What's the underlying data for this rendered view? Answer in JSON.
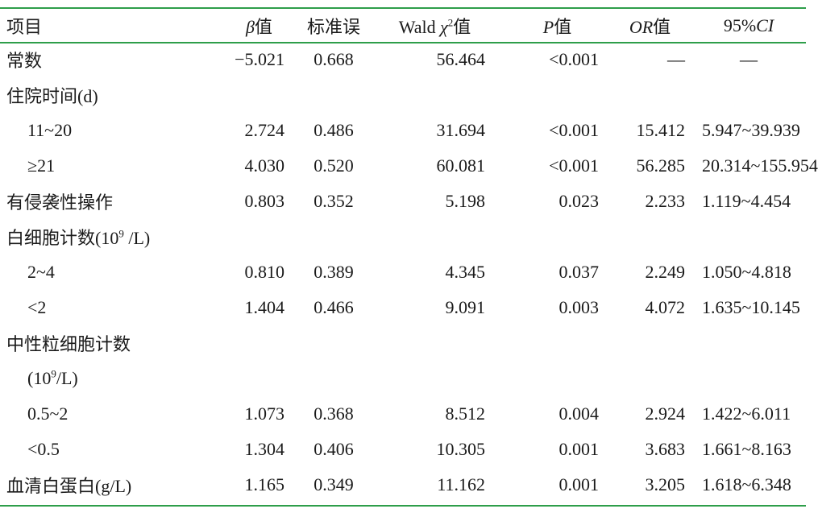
{
  "table": {
    "headers": [
      {
        "parts": [
          {
            "t": "项目",
            "i": false
          }
        ]
      },
      {
        "parts": [
          {
            "t": "β",
            "i": true
          },
          {
            "t": "值",
            "i": false
          }
        ]
      },
      {
        "parts": [
          {
            "t": "标准误",
            "i": false
          }
        ]
      },
      {
        "parts": [
          {
            "t": "Wald ",
            "i": false
          },
          {
            "t": "χ",
            "i": true
          },
          {
            "t": "2",
            "i": false,
            "sup": true
          },
          {
            "t": "值",
            "i": false
          }
        ]
      },
      {
        "parts": [
          {
            "t": "P",
            "i": true
          },
          {
            "t": "值",
            "i": false
          }
        ]
      },
      {
        "parts": [
          {
            "t": "OR",
            "i": true
          },
          {
            "t": "值",
            "i": false
          }
        ]
      },
      {
        "parts": [
          {
            "t": "95%",
            "i": false
          },
          {
            "t": "CI",
            "i": true
          }
        ]
      }
    ],
    "rows": [
      {
        "label": "常数",
        "indent": false,
        "cells": [
          "−5.021",
          "0.668",
          "56.464",
          "<0.001",
          "—",
          "—"
        ]
      },
      {
        "label": "住院时间(d)",
        "indent": false,
        "cells": [
          "",
          "",
          "",
          "",
          "",
          ""
        ]
      },
      {
        "label": "11~20",
        "indent": true,
        "cells": [
          "2.724",
          "0.486",
          "31.694",
          "<0.001",
          "15.412",
          "5.947~39.939"
        ]
      },
      {
        "label": "≥21",
        "indent": true,
        "cells": [
          "4.030",
          "0.520",
          "60.081",
          "<0.001",
          "56.285",
          "20.314~155.954"
        ]
      },
      {
        "label": "有侵袭性操作",
        "indent": false,
        "cells": [
          "0.803",
          "0.352",
          "5.198",
          "0.023",
          "2.233",
          "1.119~4.454"
        ]
      },
      {
        "label_pre": "白细胞计数(10",
        "label_sup": "9",
        "label_post": " /L)",
        "indent": false,
        "cells": [
          "",
          "",
          "",
          "",
          "",
          ""
        ]
      },
      {
        "label": "2~4",
        "indent": true,
        "cells": [
          "0.810",
          "0.389",
          "4.345",
          "0.037",
          "2.249",
          "1.050~4.818"
        ]
      },
      {
        "label": "<2",
        "indent": true,
        "cells": [
          "1.404",
          "0.466",
          "9.091",
          "0.003",
          "4.072",
          "1.635~10.145"
        ]
      },
      {
        "label": "中性粒细胞计数",
        "indent": false,
        "cells": [
          "",
          "",
          "",
          "",
          "",
          ""
        ]
      },
      {
        "label_pre": "(10",
        "label_sup": "9",
        "label_post": "/L)",
        "indent": true,
        "cells": [
          "",
          "",
          "",
          "",
          "",
          ""
        ]
      },
      {
        "label": "0.5~2",
        "indent": true,
        "cells": [
          "1.073",
          "0.368",
          "8.512",
          "0.004",
          "2.924",
          "1.422~6.011"
        ]
      },
      {
        "label": "<0.5",
        "indent": true,
        "cells": [
          "1.304",
          "0.406",
          "10.305",
          "0.001",
          "3.683",
          "1.661~8.163"
        ]
      },
      {
        "label": "血清白蛋白(g/L)",
        "indent": false,
        "cells": [
          "1.165",
          "0.349",
          "11.162",
          "0.001",
          "3.205",
          "1.618~6.348"
        ]
      }
    ]
  }
}
